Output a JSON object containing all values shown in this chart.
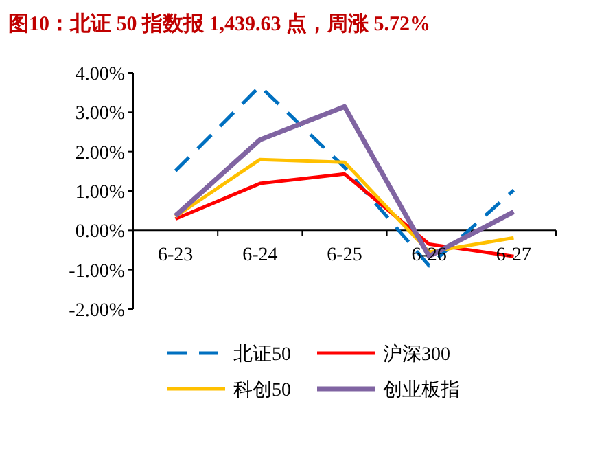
{
  "chart_data": {
    "type": "line",
    "title": "图10：北证 50 指数报 1,439.63 点，周涨 5.72%",
    "categories": [
      "6-23",
      "6-24",
      "6-25",
      "6-26",
      "6-27"
    ],
    "series": [
      {
        "name": "北证50",
        "color": "#0070c0",
        "line_style": "dashed",
        "values": [
          1.51,
          3.66,
          1.6,
          -0.9,
          1.02
        ]
      },
      {
        "name": "沪深300",
        "color": "#ff0000",
        "values": [
          0.29,
          1.19,
          1.43,
          -0.35,
          -0.66
        ]
      },
      {
        "name": "科创50",
        "color": "#ffc000",
        "values": [
          0.35,
          1.8,
          1.73,
          -0.55,
          -0.19
        ]
      },
      {
        "name": "创业板指",
        "color": "#8064a2",
        "values": [
          0.37,
          2.3,
          3.14,
          -0.66,
          0.47
        ]
      }
    ],
    "ylim": [
      -2,
      4
    ],
    "yticks": [
      {
        "value": -2,
        "label": "-2.00%"
      },
      {
        "value": -1,
        "label": "-1.00%"
      },
      {
        "value": 0,
        "label": "0.00%"
      },
      {
        "value": 1,
        "label": "1.00%"
      },
      {
        "value": 2,
        "label": "2.00%"
      },
      {
        "value": 3,
        "label": "3.00%"
      },
      {
        "value": 4,
        "label": "4.00%"
      }
    ],
    "grid": false,
    "legend": "bottom",
    "marker": "none"
  }
}
